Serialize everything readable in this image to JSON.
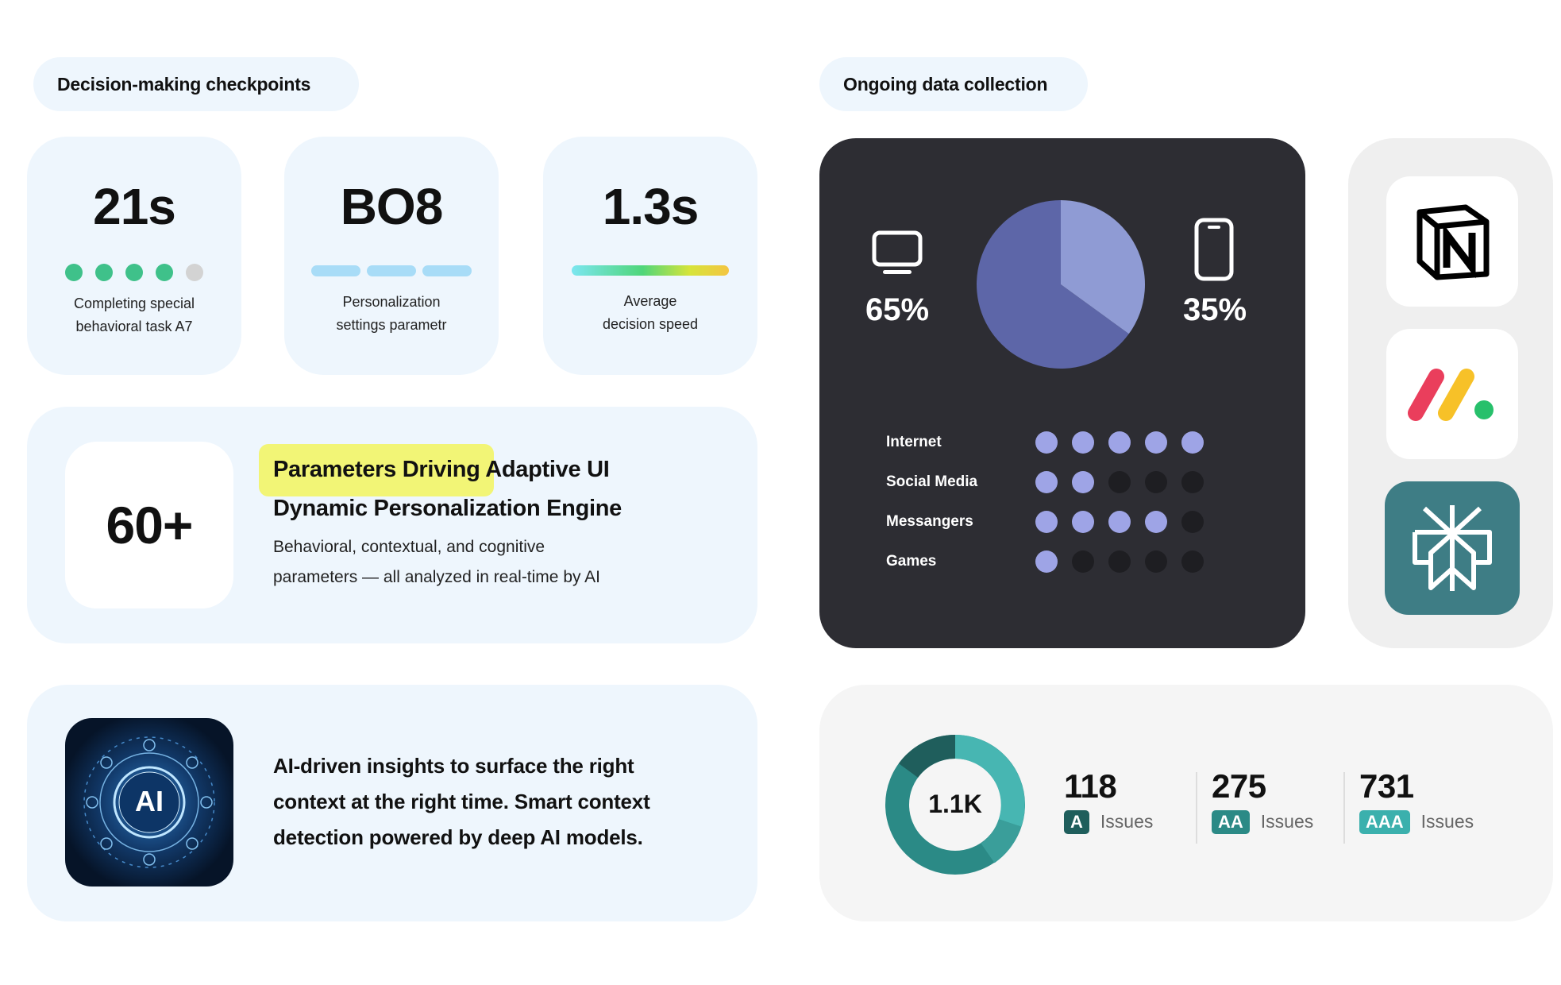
{
  "left": {
    "header": "Decision-making checkpoints",
    "stats": [
      {
        "value": "21s",
        "label_line1": "Completing special",
        "label_line2": "behavioral task A7",
        "progress": {
          "filled": 4,
          "total": 5
        }
      },
      {
        "value": "BO8",
        "label_line1": "Personalization",
        "label_line2": "settings parametr",
        "segments": 3
      },
      {
        "value": "1.3s",
        "label_line1": "Average",
        "label_line2": "decision speed"
      }
    ],
    "params": {
      "count": "60+",
      "title_highlight": "Parameters Driving",
      "title_rest": " Adaptive UI",
      "subtitle": "Dynamic Personalization Engine",
      "desc_line1": "Behavioral, contextual, and cognitive",
      "desc_line2": "parameters — all analyzed in real-time by AI"
    },
    "ai": {
      "icon_label": "AI",
      "line1": "AI-driven insights to surface the right",
      "line2": "context at the right time. Smart context",
      "line3": "detection powered by deep AI models."
    }
  },
  "right": {
    "header": "Ongoing data collection",
    "devices": {
      "desktop_pct": "65%",
      "mobile_pct": "35%",
      "desktop_share": 65,
      "mobile_share": 35,
      "colors": {
        "desktop": "#5d66a8",
        "mobile": "#8f9bd4"
      }
    },
    "usage": [
      {
        "label": "Internet",
        "level": 5
      },
      {
        "label": "Social Media",
        "level": 2
      },
      {
        "label": "Messangers",
        "level": 4
      },
      {
        "label": "Games",
        "level": 1
      }
    ],
    "usage_max": 5,
    "apps": [
      "notion-app-icon",
      "monday-app-icon",
      "perplexity-app-icon"
    ],
    "issues": {
      "total": "1.1K",
      "items": [
        {
          "count": "118",
          "level": "A",
          "label": "Issues",
          "color": "#1f5e5c"
        },
        {
          "count": "275",
          "level": "AA",
          "label": "Issues",
          "color": "#2b8a86"
        },
        {
          "count": "731",
          "level": "AAA",
          "label": "Issues",
          "color": "#3bb0ad"
        }
      ]
    }
  },
  "colors": {
    "card_bg": "#eef6fd",
    "dot_filled": "#3fc18a",
    "dot_empty": "#d3d3d3",
    "usage_on": "#9ea4e6",
    "usage_off": "#1e1e22"
  }
}
